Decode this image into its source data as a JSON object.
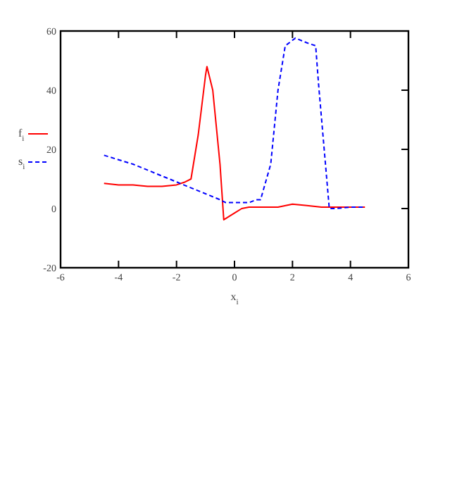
{
  "chart_data": {
    "type": "line",
    "xlabel": "x$_{i}$",
    "xlim": [
      -6,
      6
    ],
    "xticks": [
      -6,
      -4,
      -2,
      0,
      2,
      4,
      6
    ],
    "ylim": [
      -20,
      60
    ],
    "yticks": [
      -20,
      0,
      20,
      40,
      60
    ],
    "grid": false,
    "legend": "left",
    "marker": "none",
    "series": [
      {
        "name": "f$_{i}$",
        "color": "#ff0000",
        "line_style": "solid",
        "x": [
          -4.5,
          -4,
          -3.5,
          -3,
          -2.5,
          -2,
          -1.7,
          -1.5,
          -1.25,
          -1,
          -0.95,
          -0.75,
          -0.5,
          -0.37,
          0,
          0.25,
          0.5,
          1,
          1.5,
          2,
          2.5,
          3,
          3.5,
          4,
          4.5
        ],
        "values": [
          8.5,
          8,
          8,
          7.5,
          7.5,
          8,
          9,
          10,
          25,
          45,
          48,
          40,
          15,
          -3.8,
          -1.5,
          0,
          0.5,
          0.5,
          0.5,
          1.5,
          1,
          0.5,
          0.5,
          0.5,
          0.5
        ]
      },
      {
        "name": "s$_{i}$",
        "color": "#0000ff",
        "line_style": "dashed",
        "x": [
          -4.5,
          -4,
          -3.5,
          -3,
          -2.5,
          -2,
          -1.5,
          -1,
          -0.5,
          -0.3,
          0,
          0.5,
          0.75,
          0.9,
          1.25,
          1.5,
          1.75,
          2.1,
          2.5,
          2.8,
          2.9,
          3.27,
          3.5,
          4,
          4.5
        ],
        "values": [
          18,
          16.5,
          15,
          13,
          11,
          9,
          7,
          5,
          3,
          2,
          2,
          2,
          3,
          3,
          15,
          40,
          55,
          57.6,
          56,
          55,
          42,
          0,
          0,
          0.5,
          0.5
        ]
      }
    ]
  }
}
